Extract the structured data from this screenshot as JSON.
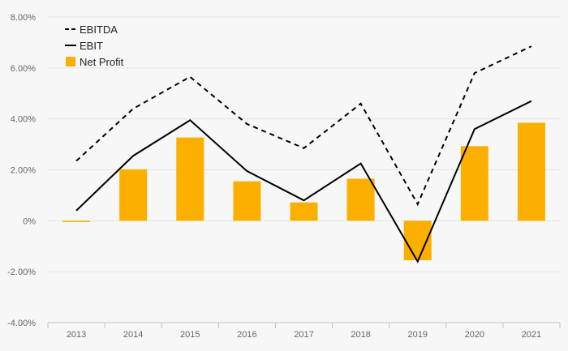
{
  "chart_data": {
    "type": "bar",
    "categories": [
      "2013",
      "2014",
      "2015",
      "2016",
      "2017",
      "2018",
      "2019",
      "2020",
      "2021"
    ],
    "series": [
      {
        "name": "EBITDA",
        "type": "line",
        "style": "dashed",
        "color": "#000000",
        "values": [
          2.35,
          4.4,
          5.65,
          3.8,
          2.85,
          4.6,
          0.65,
          5.8,
          6.85
        ]
      },
      {
        "name": "EBIT",
        "type": "line",
        "style": "solid",
        "color": "#000000",
        "values": [
          0.4,
          2.55,
          3.95,
          1.95,
          0.8,
          2.25,
          -1.6,
          3.6,
          4.7
        ]
      },
      {
        "name": "Net Profit",
        "type": "bar",
        "color": "#FBB000",
        "values": [
          -0.05,
          2.02,
          3.27,
          1.55,
          0.72,
          1.65,
          -1.55,
          2.93,
          3.85
        ]
      }
    ],
    "yticks": [
      -4,
      -2,
      0,
      2,
      4,
      6,
      8
    ],
    "ytick_labels": [
      "-4.00%",
      "-2.00%",
      "0%",
      "2.00%",
      "4.00%",
      "6.00%",
      "8.00%"
    ],
    "ylim": [
      -4,
      8
    ],
    "legend": {
      "position": "top-left"
    },
    "grid": true
  }
}
